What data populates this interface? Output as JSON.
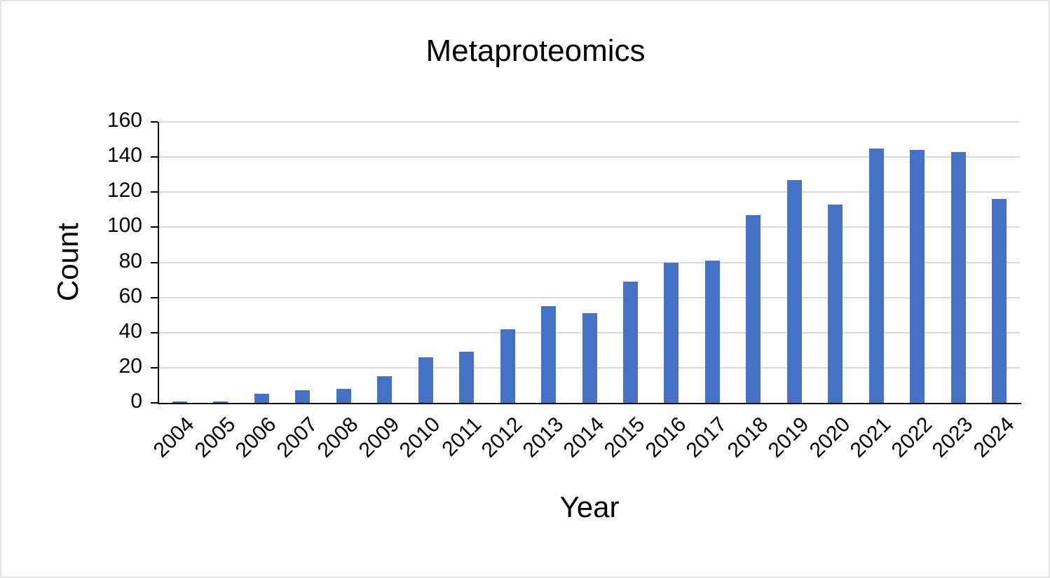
{
  "chart": {
    "title": "Metaproteomics",
    "xlabel": "Year",
    "ylabel": "Count"
  },
  "chart_data": {
    "type": "bar",
    "title": "Metaproteomics",
    "xlabel": "Year",
    "ylabel": "Count",
    "categories": [
      "2004",
      "2005",
      "2006",
      "2007",
      "2008",
      "2009",
      "2010",
      "2011",
      "2012",
      "2013",
      "2014",
      "2015",
      "2016",
      "2017",
      "2018",
      "2019",
      "2020",
      "2021",
      "2022",
      "2023",
      "2024"
    ],
    "values": [
      1,
      1,
      5,
      7,
      8,
      15,
      26,
      29,
      42,
      55,
      51,
      69,
      80,
      81,
      107,
      127,
      113,
      145,
      144,
      143,
      116
    ],
    "ylim": [
      0,
      160
    ],
    "yticks": [
      0,
      20,
      40,
      60,
      80,
      100,
      120,
      140,
      160
    ],
    "bar_color": "#4472C4",
    "gridlines": true,
    "legend": "none"
  }
}
